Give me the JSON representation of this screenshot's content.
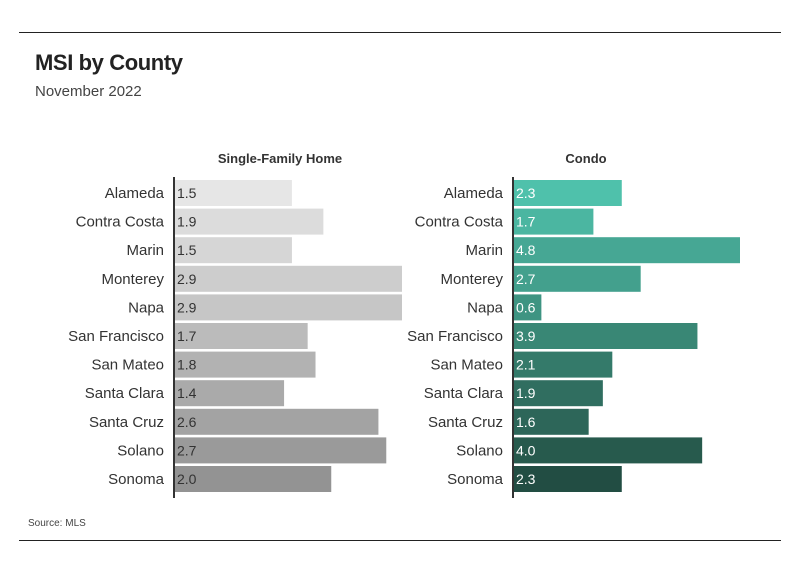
{
  "title": "MSI by County",
  "subtitle": "November 2022",
  "source": "Source: MLS",
  "chart_data": [
    {
      "type": "bar",
      "orientation": "horizontal",
      "title": "Single-Family Home",
      "categories": [
        "Alameda",
        "Contra Costa",
        "Marin",
        "Monterey",
        "Napa",
        "San Francisco",
        "San Mateo",
        "Santa Clara",
        "Santa Cruz",
        "Solano",
        "Sonoma"
      ],
      "values": [
        1.5,
        1.9,
        1.5,
        2.9,
        2.9,
        1.7,
        1.8,
        1.4,
        2.6,
        2.7,
        2.0
      ],
      "labels": [
        "1.5",
        "1.9",
        "1.5",
        "2.9",
        "2.9",
        "1.7",
        "1.8",
        "1.4",
        "2.6",
        "2.7",
        "2.0"
      ],
      "xlim": [
        0,
        2.9
      ],
      "grid": false,
      "colors": [
        "#e6e6e6",
        "#dcdcdc",
        "#d6d6d6",
        "#cdcdcd",
        "#c6c6c6",
        "#bbbbbb",
        "#b2b2b2",
        "#aaaaaa",
        "#a3a3a3",
        "#9a9a9a",
        "#939393"
      ],
      "label_color": "#333333"
    },
    {
      "type": "bar",
      "orientation": "horizontal",
      "title": "Condo",
      "categories": [
        "Alameda",
        "Contra Costa",
        "Marin",
        "Monterey",
        "Napa",
        "San Francisco",
        "San Mateo",
        "Santa Clara",
        "Santa Cruz",
        "Solano",
        "Sonoma"
      ],
      "values": [
        2.3,
        1.7,
        4.8,
        2.7,
        0.6,
        3.9,
        2.1,
        1.9,
        1.6,
        4.0,
        2.3
      ],
      "labels": [
        "2.3",
        "1.7",
        "4.8",
        "2.7",
        "0.6",
        "3.9",
        "2.1",
        "1.9",
        "1.6",
        "4.0",
        "2.3"
      ],
      "xlim": [
        0,
        4.8
      ],
      "grid": false,
      "colors": [
        "#4fc1ab",
        "#4bb6a1",
        "#46a794",
        "#43a08d",
        "#3e9482",
        "#398775",
        "#347a6a",
        "#306e60",
        "#2d6659",
        "#275a4d",
        "#224d43"
      ],
      "label_color": "#ffffff"
    }
  ]
}
